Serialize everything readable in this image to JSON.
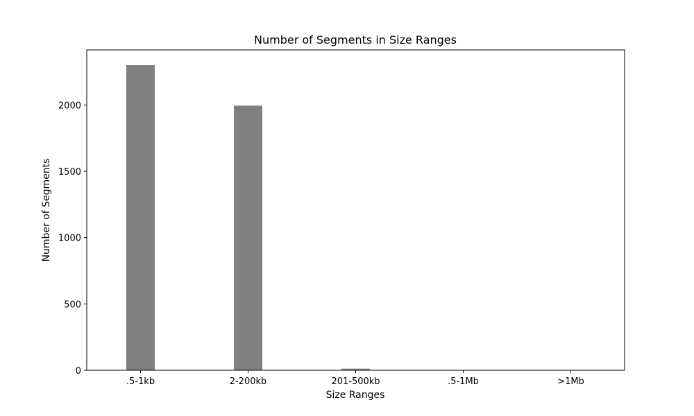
{
  "chart_data": {
    "type": "bar",
    "title": "Number of Segments in Size Ranges",
    "xlabel": "Size Ranges",
    "ylabel": "Number of Segments",
    "categories": [
      ".5-1kb",
      "2-200kb",
      "201-500kb",
      ".5-1Mb",
      ">1Mb"
    ],
    "values": [
      2300,
      1995,
      12,
      0,
      0
    ],
    "ylim": [
      0,
      2415
    ],
    "yticks": [
      0,
      500,
      1000,
      1500,
      2000
    ],
    "grid": false,
    "bar_color": "#808080"
  }
}
